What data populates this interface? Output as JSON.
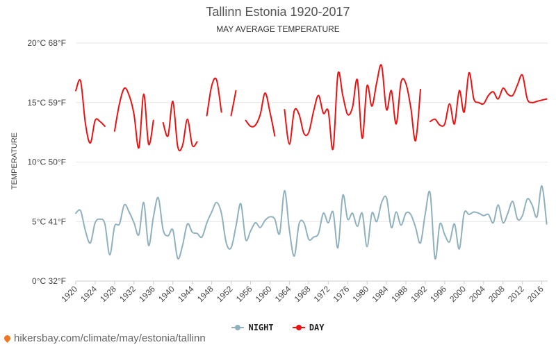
{
  "title": "Tallinn Estonia 1920-2017",
  "subtitle": "MAY AVERAGE TEMPERATURE",
  "ylabel": "TEMPERATURE",
  "source": "hikersbay.com/climate/may/estonia/tallinn",
  "legend": {
    "night": "NIGHT",
    "day": "DAY"
  },
  "colors": {
    "night": "#8fb1bd",
    "day": "#ee1111",
    "grid": "#e6e6e6"
  },
  "chart_data": {
    "type": "line",
    "title": "Tallinn Estonia 1920-2017",
    "subtitle": "MAY AVERAGE TEMPERATURE",
    "ylabel": "TEMPERATURE",
    "ylim": [
      0,
      20
    ],
    "xlim": [
      1920,
      2017
    ],
    "grid": true,
    "legend_position": "bottom",
    "y_ticks": [
      {
        "value": 0,
        "label": "0°C 32°F"
      },
      {
        "value": 5,
        "label": "5°C 41°F"
      },
      {
        "value": 10,
        "label": "10°C 50°F"
      },
      {
        "value": 15,
        "label": "15°C 59°F"
      },
      {
        "value": 20,
        "label": "20°C 68°F"
      }
    ],
    "x_ticks": [
      1920,
      1924,
      1928,
      1932,
      1936,
      1940,
      1944,
      1948,
      1952,
      1956,
      1960,
      1964,
      1968,
      1972,
      1976,
      1980,
      1984,
      1988,
      1992,
      1996,
      2000,
      2004,
      2008,
      2012,
      2016
    ],
    "series": [
      {
        "name": "NIGHT",
        "x": [
          1920,
          1921,
          1922,
          1923,
          1924,
          1925,
          1926,
          1927,
          1928,
          1929,
          1930,
          1931,
          1932,
          1933,
          1934,
          1935,
          1936,
          1937,
          1938,
          1939,
          1940,
          1941,
          1942,
          1943,
          1944,
          1945,
          1946,
          1947,
          1948,
          1949,
          1950,
          1951,
          1952,
          1953,
          1954,
          1955,
          1956,
          1957,
          1958,
          1959,
          1960,
          1961,
          1962,
          1963,
          1964,
          1965,
          1966,
          1967,
          1968,
          1969,
          1970,
          1971,
          1972,
          1973,
          1974,
          1975,
          1976,
          1977,
          1978,
          1979,
          1980,
          1981,
          1982,
          1983,
          1984,
          1985,
          1986,
          1987,
          1988,
          1989,
          1990,
          1991,
          1992,
          1993,
          1994,
          1995,
          1996,
          1997,
          1998,
          1999,
          2000,
          2001,
          2002,
          2003,
          2004,
          2005,
          2006,
          2007,
          2008,
          2009,
          2010,
          2011,
          2012,
          2013,
          2014,
          2015,
          2016,
          2017
        ],
        "values": [
          5.7,
          5.9,
          4.2,
          3.2,
          4.9,
          5.2,
          4.8,
          2.2,
          4.6,
          4.8,
          6.4,
          5.8,
          4.9,
          3.9,
          6.6,
          3.0,
          5.4,
          7.0,
          4.3,
          3.8,
          4.3,
          1.9,
          3.0,
          4.8,
          4.1,
          4.0,
          3.7,
          4.9,
          5.8,
          6.6,
          5.7,
          3.2,
          2.8,
          4.6,
          6.5,
          3.5,
          4.2,
          4.9,
          4.5,
          5.1,
          5.4,
          5.2,
          4.0,
          7.6,
          4.3,
          2.1,
          4.8,
          4.9,
          3.5,
          3.7,
          4.0,
          5.7,
          4.9,
          5.8,
          2.8,
          7.2,
          5.2,
          5.7,
          4.6,
          5.7,
          2.9,
          5.7,
          5.0,
          6.6,
          7.0,
          4.5,
          5.8,
          4.7,
          5.7,
          5.6,
          4.5,
          3.2,
          5.7,
          7.4,
          1.9,
          4.8,
          3.9,
          3.3,
          4.8,
          2.7,
          5.7,
          5.6,
          5.8,
          5.7,
          5.5,
          5.6,
          4.9,
          6.4,
          4.9,
          5.7,
          6.7,
          5.2,
          5.5,
          6.9,
          6.4,
          5.4,
          8.0,
          4.8
        ]
      },
      {
        "name": "DAY",
        "x": [
          1920,
          1921,
          1922,
          1923,
          1924,
          1925,
          1926,
          1927,
          1928,
          1929,
          1930,
          1931,
          1932,
          1933,
          1934,
          1935,
          1936,
          1937,
          1938,
          1939,
          1940,
          1941,
          1942,
          1943,
          1944,
          1945,
          1946,
          1947,
          1948,
          1949,
          1950,
          1951,
          1952,
          1953,
          1954,
          1955,
          1956,
          1957,
          1958,
          1959,
          1960,
          1961,
          1962,
          1963,
          1964,
          1965,
          1966,
          1967,
          1968,
          1969,
          1970,
          1971,
          1972,
          1973,
          1974,
          1975,
          1976,
          1977,
          1978,
          1979,
          1980,
          1981,
          1982,
          1983,
          1984,
          1985,
          1986,
          1987,
          1988,
          1989,
          1990,
          1991,
          1992,
          1993,
          1994,
          1995,
          1996,
          1997,
          1998,
          1999,
          2000,
          2001,
          2002,
          2003,
          2004,
          2005,
          2006,
          2007,
          2008,
          2009,
          2010,
          2011,
          2012,
          2013,
          2014,
          2015,
          2016,
          2017
        ],
        "values": [
          16.0,
          16.8,
          13.2,
          11.6,
          13.5,
          13.4,
          13.0,
          null,
          12.6,
          14.9,
          16.2,
          15.6,
          14.0,
          11.2,
          15.7,
          11.5,
          13.5,
          null,
          13.3,
          12.2,
          15.1,
          11.3,
          11.4,
          13.6,
          11.4,
          11.7,
          null,
          13.9,
          16.4,
          16.9,
          14.2,
          null,
          13.9,
          16.0,
          null,
          13.5,
          13.0,
          13.1,
          14.0,
          15.8,
          14.2,
          12.2,
          null,
          14.4,
          11.5,
          14.3,
          14.0,
          12.4,
          12.5,
          14.3,
          15.6,
          14.1,
          14.3,
          11.1,
          17.4,
          15.6,
          14.0,
          14.6,
          16.9,
          12.0,
          16.4,
          14.7,
          16.7,
          18.1,
          14.4,
          16.0,
          13.2,
          16.7,
          16.6,
          14.6,
          11.8,
          16.1,
          null,
          13.4,
          13.6,
          13.1,
          13.2,
          14.9,
          13.2,
          16.0,
          14.2,
          17.5,
          15.3,
          15.0,
          14.9,
          15.6,
          15.9,
          15.3,
          16.2,
          15.7,
          15.6,
          16.5,
          17.3,
          15.3,
          15.0,
          15.1,
          15.2,
          15.3
        ]
      }
    ]
  }
}
